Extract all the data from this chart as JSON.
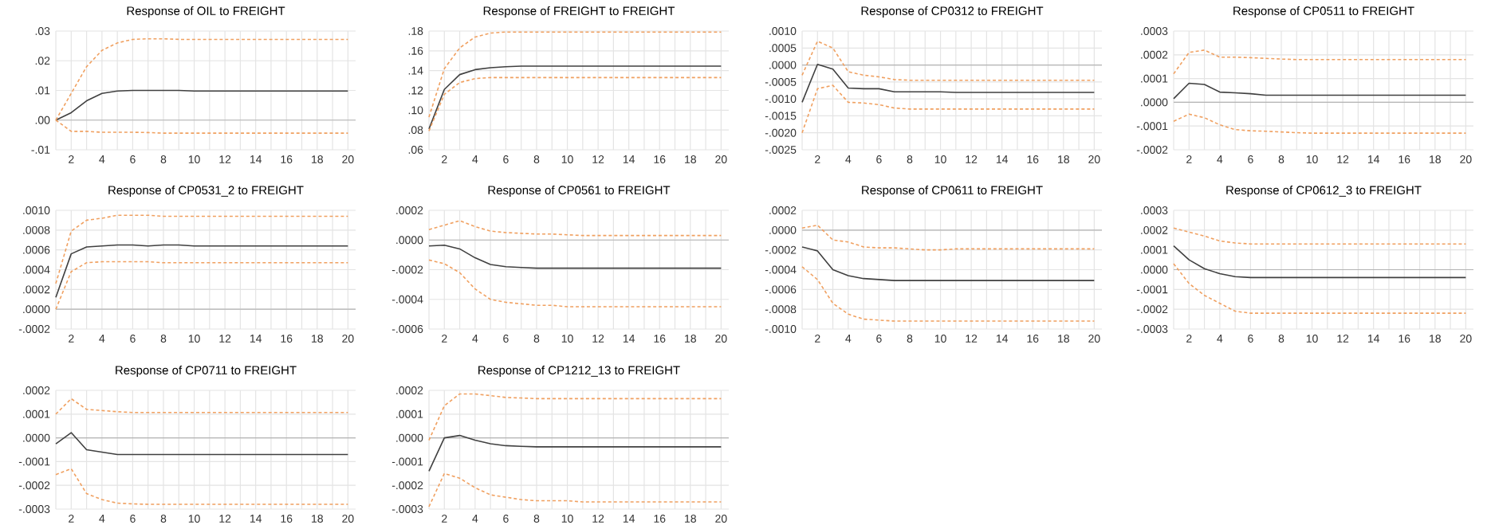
{
  "chart_data": [
    {
      "type": "line",
      "title": "Response of OIL to FREIGHT",
      "x": [
        1,
        2,
        3,
        4,
        5,
        6,
        7,
        8,
        9,
        10,
        11,
        12,
        13,
        14,
        15,
        16,
        17,
        18,
        19,
        20
      ],
      "xlim": [
        1,
        20.5
      ],
      "xticks": [
        {
          "value": 1,
          "label": null
        },
        2,
        {
          "value": 3,
          "label": null
        },
        4,
        {
          "value": 5,
          "label": null
        },
        6,
        {
          "value": 7,
          "label": null
        },
        8,
        {
          "value": 9,
          "label": null
        },
        10,
        {
          "value": 11,
          "label": null
        },
        12,
        {
          "value": 13,
          "label": null
        },
        14,
        {
          "value": 15,
          "label": null
        },
        16,
        {
          "value": 17,
          "label": null
        },
        18,
        {
          "value": 19,
          "label": null
        },
        20
      ],
      "ylim": [
        -0.01,
        0.03
      ],
      "yticks": [
        {
          "value": -0.01,
          "label": "-.01"
        },
        {
          "value": 0,
          "label": ".00"
        },
        {
          "value": 0.01,
          "label": ".01"
        },
        {
          "value": 0.02,
          "label": ".02"
        },
        {
          "value": 0.03,
          "label": ".03"
        }
      ],
      "grid": true,
      "ref_lines": [
        {
          "axis": "y",
          "value": 0,
          "color": "#b4b4b4"
        }
      ],
      "series": [
        {
          "color": "#404040",
          "line_style": "solid",
          "values": [
            0,
            0.0025,
            0.0065,
            0.009,
            0.0098,
            0.01,
            0.01,
            0.01,
            0.01,
            0.0098,
            0.0098,
            0.0098,
            0.0098,
            0.0098,
            0.0098,
            0.0098,
            0.0098,
            0.0098,
            0.0098,
            0.0098
          ]
        },
        {
          "color": "#f0a060",
          "line_style": "dashed",
          "values": [
            0,
            0.009,
            0.018,
            0.0235,
            0.026,
            0.0272,
            0.0274,
            0.0274,
            0.0272,
            0.0272,
            0.0272,
            0.0272,
            0.0272,
            0.0272,
            0.0272,
            0.0272,
            0.0272,
            0.0272,
            0.0272,
            0.0272
          ]
        },
        {
          "color": "#f0a060",
          "line_style": "dashed",
          "values": [
            0,
            -0.0038,
            -0.0038,
            -0.0041,
            -0.0041,
            -0.0041,
            -0.0042,
            -0.0044,
            -0.0044,
            -0.0044,
            -0.0044,
            -0.0044,
            -0.0044,
            -0.0044,
            -0.0044,
            -0.0044,
            -0.0044,
            -0.0044,
            -0.0044,
            -0.0044
          ]
        }
      ]
    },
    {
      "type": "line",
      "title": "Response of FREIGHT to FREIGHT",
      "x": [
        1,
        2,
        3,
        4,
        5,
        6,
        7,
        8,
        9,
        10,
        11,
        12,
        13,
        14,
        15,
        16,
        17,
        18,
        19,
        20
      ],
      "xlim": [
        1,
        20.5
      ],
      "xticks": [
        {
          "value": 1,
          "label": null
        },
        2,
        {
          "value": 3,
          "label": null
        },
        4,
        {
          "value": 5,
          "label": null
        },
        6,
        {
          "value": 7,
          "label": null
        },
        8,
        {
          "value": 9,
          "label": null
        },
        10,
        {
          "value": 11,
          "label": null
        },
        12,
        {
          "value": 13,
          "label": null
        },
        14,
        {
          "value": 15,
          "label": null
        },
        16,
        {
          "value": 17,
          "label": null
        },
        18,
        {
          "value": 19,
          "label": null
        },
        20
      ],
      "ylim": [
        0.06,
        0.18
      ],
      "yticks": [
        {
          "value": 0.06,
          "label": ".06"
        },
        {
          "value": 0.08,
          "label": ".08"
        },
        {
          "value": 0.1,
          "label": ".10"
        },
        {
          "value": 0.12,
          "label": ".12"
        },
        {
          "value": 0.14,
          "label": ".14"
        },
        {
          "value": 0.16,
          "label": ".16"
        },
        {
          "value": 0.18,
          "label": ".18"
        }
      ],
      "grid": true,
      "series": [
        {
          "color": "#404040",
          "line_style": "solid",
          "values": [
            0.081,
            0.121,
            0.136,
            0.141,
            0.143,
            0.144,
            0.1445,
            0.1445,
            0.1445,
            0.1445,
            0.1445,
            0.1445,
            0.1445,
            0.1445,
            0.1445,
            0.1445,
            0.1445,
            0.1445,
            0.1445,
            0.1445
          ]
        },
        {
          "color": "#f0a060",
          "line_style": "dashed",
          "values": [
            0.093,
            0.142,
            0.163,
            0.174,
            0.178,
            0.179,
            0.179,
            0.179,
            0.179,
            0.179,
            0.179,
            0.179,
            0.179,
            0.179,
            0.179,
            0.179,
            0.179,
            0.179,
            0.179,
            0.179
          ]
        },
        {
          "color": "#f0a060",
          "line_style": "dashed",
          "values": [
            0.079,
            0.116,
            0.128,
            0.132,
            0.133,
            0.133,
            0.133,
            0.133,
            0.133,
            0.133,
            0.133,
            0.133,
            0.133,
            0.133,
            0.133,
            0.133,
            0.133,
            0.133,
            0.133,
            0.133
          ]
        }
      ]
    },
    {
      "type": "line",
      "title": "Response of CP0312 to FREIGHT",
      "x": [
        1,
        2,
        3,
        4,
        5,
        6,
        7,
        8,
        9,
        10,
        11,
        12,
        13,
        14,
        15,
        16,
        17,
        18,
        19,
        20
      ],
      "xlim": [
        1,
        20.5
      ],
      "xticks": [
        {
          "value": 1,
          "label": null
        },
        2,
        {
          "value": 3,
          "label": null
        },
        4,
        {
          "value": 5,
          "label": null
        },
        6,
        {
          "value": 7,
          "label": null
        },
        8,
        {
          "value": 9,
          "label": null
        },
        10,
        {
          "value": 11,
          "label": null
        },
        12,
        {
          "value": 13,
          "label": null
        },
        14,
        {
          "value": 15,
          "label": null
        },
        16,
        {
          "value": 17,
          "label": null
        },
        18,
        {
          "value": 19,
          "label": null
        },
        20
      ],
      "ylim": [
        -0.0025,
        0.001
      ],
      "yticks": [
        {
          "value": -0.0025,
          "label": "-.0025"
        },
        {
          "value": -0.002,
          "label": "-.0020"
        },
        {
          "value": -0.0015,
          "label": "-.0015"
        },
        {
          "value": -0.001,
          "label": "-.0010"
        },
        {
          "value": -0.0005,
          "label": "-.0005"
        },
        {
          "value": 0,
          "label": ".0000"
        },
        {
          "value": 0.0005,
          "label": ".0005"
        },
        {
          "value": 0.001,
          "label": ".0010"
        }
      ],
      "grid": true,
      "ref_lines": [
        {
          "axis": "y",
          "value": 0,
          "color": "#b4b4b4"
        }
      ],
      "series": [
        {
          "color": "#404040",
          "line_style": "solid",
          "values": [
            -0.0011,
            2e-05,
            -0.00012,
            -0.00068,
            -0.0007,
            -0.0007,
            -0.00079,
            -0.00079,
            -0.00079,
            -0.00079,
            -0.00081,
            -0.00081,
            -0.00081,
            -0.00081,
            -0.00081,
            -0.00081,
            -0.00081,
            -0.00081,
            -0.00081,
            -0.00081
          ]
        },
        {
          "color": "#f0a060",
          "line_style": "dashed",
          "values": [
            -0.0003,
            0.0007,
            0.0005,
            -0.0002,
            -0.0003,
            -0.00035,
            -0.00043,
            -0.00045,
            -0.00045,
            -0.00045,
            -0.00045,
            -0.00045,
            -0.00045,
            -0.00045,
            -0.00045,
            -0.00045,
            -0.00045,
            -0.00045,
            -0.00045,
            -0.00045
          ]
        },
        {
          "color": "#f0a060",
          "line_style": "dashed",
          "values": [
            -0.002,
            -0.0007,
            -0.0006,
            -0.0011,
            -0.00112,
            -0.00117,
            -0.00127,
            -0.0013,
            -0.0013,
            -0.0013,
            -0.0013,
            -0.0013,
            -0.0013,
            -0.0013,
            -0.0013,
            -0.0013,
            -0.0013,
            -0.0013,
            -0.0013,
            -0.0013
          ]
        }
      ]
    },
    {
      "type": "line",
      "title": "Response of CP0511 to FREIGHT",
      "x": [
        1,
        2,
        3,
        4,
        5,
        6,
        7,
        8,
        9,
        10,
        11,
        12,
        13,
        14,
        15,
        16,
        17,
        18,
        19,
        20
      ],
      "xlim": [
        1,
        20.5
      ],
      "xticks": [
        {
          "value": 1,
          "label": null
        },
        2,
        {
          "value": 3,
          "label": null
        },
        4,
        {
          "value": 5,
          "label": null
        },
        6,
        {
          "value": 7,
          "label": null
        },
        8,
        {
          "value": 9,
          "label": null
        },
        10,
        {
          "value": 11,
          "label": null
        },
        12,
        {
          "value": 13,
          "label": null
        },
        14,
        {
          "value": 15,
          "label": null
        },
        16,
        {
          "value": 17,
          "label": null
        },
        18,
        {
          "value": 19,
          "label": null
        },
        20
      ],
      "ylim": [
        -0.0002,
        0.0003
      ],
      "yticks": [
        {
          "value": -0.0002,
          "label": "-.0002"
        },
        {
          "value": -0.0001,
          "label": "-.0001"
        },
        {
          "value": 0,
          "label": ".0000"
        },
        {
          "value": 0.0001,
          "label": ".0001"
        },
        {
          "value": 0.0002,
          "label": ".0002"
        },
        {
          "value": 0.0003,
          "label": ".0003"
        }
      ],
      "grid": true,
      "ref_lines": [
        {
          "axis": "y",
          "value": 0,
          "color": "#b4b4b4"
        }
      ],
      "series": [
        {
          "color": "#404040",
          "line_style": "solid",
          "values": [
            1.5e-05,
            8e-05,
            7.5e-05,
            4.3e-05,
            4e-05,
            3.6e-05,
            3e-05,
            3e-05,
            3e-05,
            3e-05,
            3e-05,
            3e-05,
            3e-05,
            3e-05,
            3e-05,
            3e-05,
            3e-05,
            3e-05,
            3e-05,
            3e-05
          ]
        },
        {
          "color": "#f0a060",
          "line_style": "dashed",
          "values": [
            0.00012,
            0.00021,
            0.00022,
            0.00019,
            0.00019,
            0.000188,
            0.000185,
            0.000182,
            0.00018,
            0.00018,
            0.00018,
            0.00018,
            0.00018,
            0.00018,
            0.00018,
            0.00018,
            0.00018,
            0.00018,
            0.00018,
            0.00018
          ]
        },
        {
          "color": "#f0a060",
          "line_style": "dashed",
          "values": [
            -8e-05,
            -5e-05,
            -6.5e-05,
            -9.5e-05,
            -0.000115,
            -0.00012,
            -0.000122,
            -0.000125,
            -0.000128,
            -0.00013,
            -0.00013,
            -0.00013,
            -0.00013,
            -0.00013,
            -0.00013,
            -0.00013,
            -0.00013,
            -0.00013,
            -0.00013,
            -0.00013
          ]
        }
      ]
    },
    {
      "type": "line",
      "title": "Response of CP0531_2 to FREIGHT",
      "x": [
        1,
        2,
        3,
        4,
        5,
        6,
        7,
        8,
        9,
        10,
        11,
        12,
        13,
        14,
        15,
        16,
        17,
        18,
        19,
        20
      ],
      "xlim": [
        1,
        20.5
      ],
      "xticks": [
        {
          "value": 1,
          "label": null
        },
        2,
        {
          "value": 3,
          "label": null
        },
        4,
        {
          "value": 5,
          "label": null
        },
        6,
        {
          "value": 7,
          "label": null
        },
        8,
        {
          "value": 9,
          "label": null
        },
        10,
        {
          "value": 11,
          "label": null
        },
        12,
        {
          "value": 13,
          "label": null
        },
        14,
        {
          "value": 15,
          "label": null
        },
        16,
        {
          "value": 17,
          "label": null
        },
        18,
        {
          "value": 19,
          "label": null
        },
        20
      ],
      "ylim": [
        -0.0002,
        0.001
      ],
      "yticks": [
        {
          "value": -0.0002,
          "label": "-.0002"
        },
        {
          "value": 0,
          "label": ".0000"
        },
        {
          "value": 0.0002,
          "label": ".0002"
        },
        {
          "value": 0.0004,
          "label": ".0004"
        },
        {
          "value": 0.0006,
          "label": ".0006"
        },
        {
          "value": 0.0008,
          "label": ".0008"
        },
        {
          "value": 0.001,
          "label": ".0010"
        }
      ],
      "grid": true,
      "ref_lines": [
        {
          "axis": "y",
          "value": 0,
          "color": "#b4b4b4"
        }
      ],
      "series": [
        {
          "color": "#404040",
          "line_style": "solid",
          "values": [
            0.00012,
            0.00056,
            0.00063,
            0.00064,
            0.00065,
            0.00065,
            0.00064,
            0.00065,
            0.00065,
            0.00064,
            0.00064,
            0.00064,
            0.00064,
            0.00064,
            0.00064,
            0.00064,
            0.00064,
            0.00064,
            0.00064,
            0.00064
          ]
        },
        {
          "color": "#f0a060",
          "line_style": "dashed",
          "values": [
            0.00026,
            0.00079,
            0.0009,
            0.00092,
            0.00095,
            0.00095,
            0.00095,
            0.00094,
            0.00094,
            0.00094,
            0.00094,
            0.00094,
            0.00094,
            0.00094,
            0.00094,
            0.00094,
            0.00094,
            0.00094,
            0.00094,
            0.00094
          ]
        },
        {
          "color": "#f0a060",
          "line_style": "dashed",
          "values": [
            0,
            0.00038,
            0.00047,
            0.00048,
            0.00048,
            0.00048,
            0.00048,
            0.00047,
            0.00047,
            0.00047,
            0.00047,
            0.00047,
            0.00047,
            0.00047,
            0.00047,
            0.00047,
            0.00047,
            0.00047,
            0.00047,
            0.00047
          ]
        }
      ]
    },
    {
      "type": "line",
      "title": "Response of CP0561 to FREIGHT",
      "x": [
        1,
        2,
        3,
        4,
        5,
        6,
        7,
        8,
        9,
        10,
        11,
        12,
        13,
        14,
        15,
        16,
        17,
        18,
        19,
        20
      ],
      "xlim": [
        1,
        20.5
      ],
      "xticks": [
        {
          "value": 1,
          "label": null
        },
        2,
        {
          "value": 3,
          "label": null
        },
        4,
        {
          "value": 5,
          "label": null
        },
        6,
        {
          "value": 7,
          "label": null
        },
        8,
        {
          "value": 9,
          "label": null
        },
        10,
        {
          "value": 11,
          "label": null
        },
        12,
        {
          "value": 13,
          "label": null
        },
        14,
        {
          "value": 15,
          "label": null
        },
        16,
        {
          "value": 17,
          "label": null
        },
        18,
        {
          "value": 19,
          "label": null
        },
        20
      ],
      "ylim": [
        -0.0006,
        0.0002
      ],
      "yticks": [
        {
          "value": -0.0006,
          "label": "-.0006"
        },
        {
          "value": -0.0004,
          "label": "-.0004"
        },
        {
          "value": -0.0002,
          "label": "-.0002"
        },
        {
          "value": 0,
          "label": ".0000"
        },
        {
          "value": 0.0002,
          "label": ".0002"
        }
      ],
      "grid": true,
      "ref_lines": [
        {
          "axis": "y",
          "value": 0,
          "color": "#b4b4b4"
        }
      ],
      "series": [
        {
          "color": "#404040",
          "line_style": "solid",
          "values": [
            -4e-05,
            -3.5e-05,
            -6e-05,
            -0.00012,
            -0.000165,
            -0.00018,
            -0.000185,
            -0.00019,
            -0.00019,
            -0.00019,
            -0.00019,
            -0.00019,
            -0.00019,
            -0.00019,
            -0.00019,
            -0.00019,
            -0.00019,
            -0.00019,
            -0.00019,
            -0.00019
          ]
        },
        {
          "color": "#f0a060",
          "line_style": "dashed",
          "values": [
            7e-05,
            0.0001,
            0.00013,
            9e-05,
            6e-05,
            5e-05,
            4.5e-05,
            4e-05,
            4e-05,
            3.5e-05,
            3e-05,
            3e-05,
            3e-05,
            3e-05,
            3e-05,
            3e-05,
            3e-05,
            3e-05,
            3e-05,
            3e-05
          ]
        },
        {
          "color": "#f0a060",
          "line_style": "dashed",
          "values": [
            -0.000135,
            -0.00016,
            -0.00022,
            -0.00033,
            -0.0004,
            -0.00042,
            -0.00043,
            -0.00044,
            -0.00044,
            -0.00045,
            -0.00045,
            -0.00045,
            -0.00045,
            -0.00045,
            -0.00045,
            -0.00045,
            -0.00045,
            -0.00045,
            -0.00045,
            -0.00045
          ]
        }
      ]
    },
    {
      "type": "line",
      "title": "Response of CP0611 to FREIGHT",
      "x": [
        1,
        2,
        3,
        4,
        5,
        6,
        7,
        8,
        9,
        10,
        11,
        12,
        13,
        14,
        15,
        16,
        17,
        18,
        19,
        20
      ],
      "xlim": [
        1,
        20.5
      ],
      "xticks": [
        {
          "value": 1,
          "label": null
        },
        2,
        {
          "value": 3,
          "label": null
        },
        4,
        {
          "value": 5,
          "label": null
        },
        6,
        {
          "value": 7,
          "label": null
        },
        8,
        {
          "value": 9,
          "label": null
        },
        10,
        {
          "value": 11,
          "label": null
        },
        12,
        {
          "value": 13,
          "label": null
        },
        14,
        {
          "value": 15,
          "label": null
        },
        16,
        {
          "value": 17,
          "label": null
        },
        18,
        {
          "value": 19,
          "label": null
        },
        20
      ],
      "ylim": [
        -0.001,
        0.0002
      ],
      "yticks": [
        {
          "value": -0.001,
          "label": "-.0010"
        },
        {
          "value": -0.0008,
          "label": "-.0008"
        },
        {
          "value": -0.0006,
          "label": "-.0006"
        },
        {
          "value": -0.0004,
          "label": "-.0004"
        },
        {
          "value": -0.0002,
          "label": "-.0002"
        },
        {
          "value": 0,
          "label": ".0000"
        },
        {
          "value": 0.0002,
          "label": ".0002"
        }
      ],
      "grid": true,
      "ref_lines": [
        {
          "axis": "y",
          "value": 0,
          "color": "#b4b4b4"
        }
      ],
      "series": [
        {
          "color": "#404040",
          "line_style": "solid",
          "values": [
            -0.00017,
            -0.00021,
            -0.0004,
            -0.00046,
            -0.00049,
            -0.0005,
            -0.00051,
            -0.00051,
            -0.00051,
            -0.00051,
            -0.00051,
            -0.00051,
            -0.00051,
            -0.00051,
            -0.00051,
            -0.00051,
            -0.00051,
            -0.00051,
            -0.00051,
            -0.00051
          ]
        },
        {
          "color": "#f0a060",
          "line_style": "dashed",
          "values": [
            2e-05,
            5e-05,
            -0.0001,
            -0.00012,
            -0.00017,
            -0.00018,
            -0.00018,
            -0.00019,
            -0.0002,
            -0.0002,
            -0.00019,
            -0.00019,
            -0.00019,
            -0.00019,
            -0.00019,
            -0.00019,
            -0.00019,
            -0.00019,
            -0.00019,
            -0.00019
          ]
        },
        {
          "color": "#f0a060",
          "line_style": "dashed",
          "values": [
            -0.00037,
            -0.0005,
            -0.00074,
            -0.00085,
            -0.0009,
            -0.00091,
            -0.00092,
            -0.00092,
            -0.00092,
            -0.00092,
            -0.00092,
            -0.00092,
            -0.00092,
            -0.00092,
            -0.00092,
            -0.00092,
            -0.00092,
            -0.00092,
            -0.00092,
            -0.00092
          ]
        }
      ]
    },
    {
      "type": "line",
      "title": "Response of CP0612_3 to FREIGHT",
      "x": [
        1,
        2,
        3,
        4,
        5,
        6,
        7,
        8,
        9,
        10,
        11,
        12,
        13,
        14,
        15,
        16,
        17,
        18,
        19,
        20
      ],
      "xlim": [
        1,
        20.5
      ],
      "xticks": [
        {
          "value": 1,
          "label": null
        },
        2,
        {
          "value": 3,
          "label": null
        },
        4,
        {
          "value": 5,
          "label": null
        },
        6,
        {
          "value": 7,
          "label": null
        },
        8,
        {
          "value": 9,
          "label": null
        },
        10,
        {
          "value": 11,
          "label": null
        },
        12,
        {
          "value": 13,
          "label": null
        },
        14,
        {
          "value": 15,
          "label": null
        },
        16,
        {
          "value": 17,
          "label": null
        },
        18,
        {
          "value": 19,
          "label": null
        },
        20
      ],
      "ylim": [
        -0.0003,
        0.0003
      ],
      "yticks": [
        {
          "value": -0.0003,
          "label": "-.0003"
        },
        {
          "value": -0.0002,
          "label": "-.0002"
        },
        {
          "value": -0.0001,
          "label": "-.0001"
        },
        {
          "value": 0,
          "label": ".0000"
        },
        {
          "value": 0.0001,
          "label": ".0001"
        },
        {
          "value": 0.0002,
          "label": ".0002"
        },
        {
          "value": 0.0003,
          "label": ".0003"
        }
      ],
      "grid": true,
      "ref_lines": [
        {
          "axis": "y",
          "value": 0,
          "color": "#b4b4b4"
        }
      ],
      "series": [
        {
          "color": "#404040",
          "line_style": "solid",
          "values": [
            0.00012,
            5e-05,
            5e-06,
            -2e-05,
            -3.5e-05,
            -4e-05,
            -4e-05,
            -4e-05,
            -4e-05,
            -4e-05,
            -4e-05,
            -4e-05,
            -4e-05,
            -4e-05,
            -4e-05,
            -4e-05,
            -4e-05,
            -4e-05,
            -4e-05,
            -4e-05
          ]
        },
        {
          "color": "#f0a060",
          "line_style": "dashed",
          "values": [
            0.00021,
            0.00019,
            0.00017,
            0.000145,
            0.000135,
            0.00013,
            0.00013,
            0.00013,
            0.00013,
            0.00013,
            0.00013,
            0.00013,
            0.00013,
            0.00013,
            0.00013,
            0.00013,
            0.00013,
            0.00013,
            0.00013,
            0.00013
          ]
        },
        {
          "color": "#f0a060",
          "line_style": "dashed",
          "values": [
            3e-05,
            -7e-05,
            -0.00013,
            -0.00017,
            -0.00021,
            -0.00022,
            -0.00022,
            -0.00022,
            -0.00022,
            -0.00022,
            -0.00022,
            -0.00022,
            -0.00022,
            -0.00022,
            -0.00022,
            -0.00022,
            -0.00022,
            -0.00022,
            -0.00022,
            -0.00022
          ]
        }
      ]
    },
    {
      "type": "line",
      "title": "Response of CP0711 to FREIGHT",
      "x": [
        1,
        2,
        3,
        4,
        5,
        6,
        7,
        8,
        9,
        10,
        11,
        12,
        13,
        14,
        15,
        16,
        17,
        18,
        19,
        20
      ],
      "xlim": [
        1,
        20.5
      ],
      "xticks": [
        {
          "value": 1,
          "label": null
        },
        2,
        {
          "value": 3,
          "label": null
        },
        4,
        {
          "value": 5,
          "label": null
        },
        6,
        {
          "value": 7,
          "label": null
        },
        8,
        {
          "value": 9,
          "label": null
        },
        10,
        {
          "value": 11,
          "label": null
        },
        12,
        {
          "value": 13,
          "label": null
        },
        14,
        {
          "value": 15,
          "label": null
        },
        16,
        {
          "value": 17,
          "label": null
        },
        18,
        {
          "value": 19,
          "label": null
        },
        20
      ],
      "ylim": [
        -0.0003,
        0.0002
      ],
      "yticks": [
        {
          "value": -0.0003,
          "label": "-.0003"
        },
        {
          "value": -0.0002,
          "label": "-.0002"
        },
        {
          "value": -0.0001,
          "label": "-.0001"
        },
        {
          "value": 0,
          "label": ".0000"
        },
        {
          "value": 0.0001,
          "label": ".0001"
        },
        {
          "value": 0.0002,
          "label": ".0002"
        }
      ],
      "grid": true,
      "ref_lines": [
        {
          "axis": "y",
          "value": 0,
          "color": "#b4b4b4"
        }
      ],
      "series": [
        {
          "color": "#404040",
          "line_style": "solid",
          "values": [
            -2.5e-05,
            2.2e-05,
            -5e-05,
            -6e-05,
            -7e-05,
            -7e-05,
            -7e-05,
            -7e-05,
            -7e-05,
            -7e-05,
            -7e-05,
            -7e-05,
            -7e-05,
            -7e-05,
            -7e-05,
            -7e-05,
            -7e-05,
            -7e-05,
            -7e-05,
            -7e-05
          ]
        },
        {
          "color": "#f0a060",
          "line_style": "dashed",
          "values": [
            0.0001,
            0.000165,
            0.00012,
            0.000115,
            0.00011,
            0.000107,
            0.000107,
            0.000107,
            0.000107,
            0.000107,
            0.000107,
            0.000107,
            0.000107,
            0.000107,
            0.000107,
            0.000107,
            0.000107,
            0.000107,
            0.000107,
            0.000107
          ]
        },
        {
          "color": "#f0a060",
          "line_style": "dashed",
          "values": [
            -0.000155,
            -0.00013,
            -0.000235,
            -0.00026,
            -0.000275,
            -0.000278,
            -0.00028,
            -0.00028,
            -0.00028,
            -0.00028,
            -0.00028,
            -0.00028,
            -0.00028,
            -0.00028,
            -0.00028,
            -0.00028,
            -0.00028,
            -0.00028,
            -0.00028,
            -0.00028
          ]
        }
      ]
    },
    {
      "type": "line",
      "title": "Response of CP1212_13 to FREIGHT",
      "x": [
        1,
        2,
        3,
        4,
        5,
        6,
        7,
        8,
        9,
        10,
        11,
        12,
        13,
        14,
        15,
        16,
        17,
        18,
        19,
        20
      ],
      "xlim": [
        1,
        20.5
      ],
      "xticks": [
        {
          "value": 1,
          "label": null
        },
        2,
        {
          "value": 3,
          "label": null
        },
        4,
        {
          "value": 5,
          "label": null
        },
        6,
        {
          "value": 7,
          "label": null
        },
        8,
        {
          "value": 9,
          "label": null
        },
        10,
        {
          "value": 11,
          "label": null
        },
        12,
        {
          "value": 13,
          "label": null
        },
        14,
        {
          "value": 15,
          "label": null
        },
        16,
        {
          "value": 17,
          "label": null
        },
        18,
        {
          "value": 19,
          "label": null
        },
        20
      ],
      "ylim": [
        -0.0003,
        0.0002
      ],
      "yticks": [
        {
          "value": -0.0003,
          "label": "-.0003"
        },
        {
          "value": -0.0002,
          "label": "-.0002"
        },
        {
          "value": -0.0001,
          "label": "-.0001"
        },
        {
          "value": 0,
          "label": ".0000"
        },
        {
          "value": 0.0001,
          "label": ".0001"
        },
        {
          "value": 0.0002,
          "label": ".0002"
        }
      ],
      "grid": true,
      "ref_lines": [
        {
          "axis": "y",
          "value": 0,
          "color": "#b4b4b4"
        }
      ],
      "series": [
        {
          "color": "#404040",
          "line_style": "solid",
          "values": [
            -0.00014,
            0,
            1e-05,
            -1e-05,
            -2.5e-05,
            -3.3e-05,
            -3.6e-05,
            -3.8e-05,
            -3.8e-05,
            -3.8e-05,
            -3.8e-05,
            -3.8e-05,
            -3.8e-05,
            -3.8e-05,
            -3.8e-05,
            -3.8e-05,
            -3.8e-05,
            -3.8e-05,
            -3.8e-05,
            -3.8e-05
          ]
        },
        {
          "color": "#f0a060",
          "line_style": "dashed",
          "values": [
            -1e-05,
            0.000135,
            0.000185,
            0.000185,
            0.000178,
            0.00017,
            0.000168,
            0.000165,
            0.000165,
            0.000165,
            0.000165,
            0.000165,
            0.000165,
            0.000165,
            0.000165,
            0.000165,
            0.000165,
            0.000165,
            0.000165,
            0.000165
          ]
        },
        {
          "color": "#f0a060",
          "line_style": "dashed",
          "values": [
            -0.00029,
            -0.00015,
            -0.00017,
            -0.00021,
            -0.00024,
            -0.00025,
            -0.00026,
            -0.000265,
            -0.000265,
            -0.000265,
            -0.00027,
            -0.00027,
            -0.00027,
            -0.00027,
            -0.00027,
            -0.00027,
            -0.00027,
            -0.00027,
            -0.00027,
            -0.00027
          ]
        }
      ]
    }
  ]
}
